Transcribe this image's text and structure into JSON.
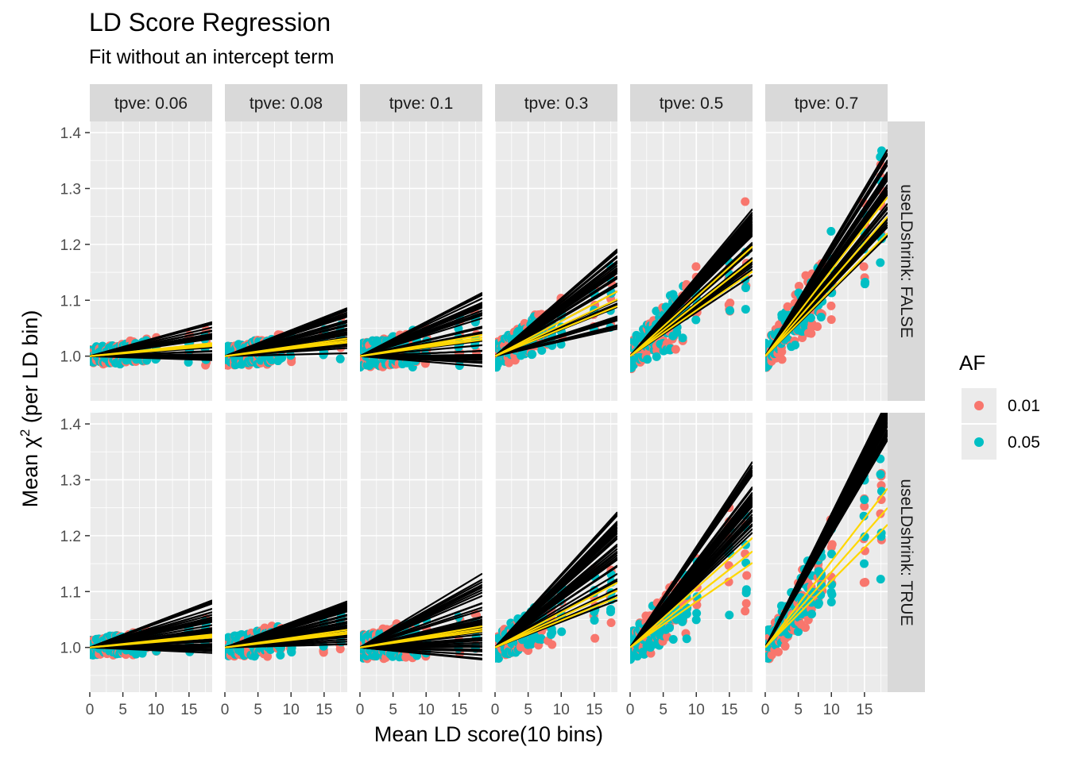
{
  "title": "LD Score Regression",
  "subtitle": "Fit without an intercept term",
  "xlabel": "Mean LD score(10 bins)",
  "ylabel_prefix": "Mean χ",
  "ylabel_sup": "2",
  "ylabel_suffix": " (per LD bin)",
  "legend": {
    "title": "AF",
    "items": [
      {
        "label": "0.01",
        "color": "#F8766D"
      },
      {
        "label": "0.05",
        "color": "#00BFC4"
      }
    ]
  },
  "colors": {
    "panel_bg": "#EBEBEB",
    "strip_bg": "#D9D9D9",
    "regression_line": "#000000",
    "mean_fit_line": "#FFD700",
    "af_001": "#F8766D",
    "af_005": "#00BFC4"
  },
  "chart_data": {
    "type": "scatter",
    "facet_cols_label": "tpve",
    "facet_cols": [
      "tpve: 0.06",
      "tpve: 0.08",
      "tpve: 0.1",
      "tpve: 0.3",
      "tpve: 0.5",
      "tpve: 0.7"
    ],
    "facet_rows": [
      "useLDshrink: FALSE",
      "useLDshrink: TRUE"
    ],
    "xlim": [
      0,
      18.5
    ],
    "ylim": [
      0.92,
      1.42
    ],
    "x_ticks": [
      0,
      5,
      10,
      15
    ],
    "y_ticks": [
      1.0,
      1.1,
      1.2,
      1.3,
      1.4
    ],
    "x_bins": [
      0.1,
      0.5,
      1,
      1.5,
      2,
      2.5,
      3,
      3.5,
      4,
      4.5,
      5,
      5.5,
      6,
      6.5,
      7,
      8,
      8.5,
      10,
      15,
      17.5
    ],
    "grid": true,
    "legend_position": "right",
    "legend_variable": "AF",
    "series_levels": [
      "0.01",
      "0.05"
    ],
    "panels": [
      {
        "row": "useLDshrink: FALSE",
        "col": "tpve: 0.06",
        "slope_mean": 0.0011,
        "slope_range": [
          -0.0005,
          0.0035
        ],
        "point_spread": 0.03
      },
      {
        "row": "useLDshrink: FALSE",
        "col": "tpve: 0.08",
        "slope_mean": 0.0015,
        "slope_range": [
          0.0002,
          0.0047
        ],
        "point_spread": 0.035
      },
      {
        "row": "useLDshrink: FALSE",
        "col": "tpve: 0.1",
        "slope_mean": 0.0018,
        "slope_range": [
          -0.0012,
          0.0062
        ],
        "point_spread": 0.045
      },
      {
        "row": "useLDshrink: FALSE",
        "col": "tpve: 0.3",
        "slope_mean": 0.0055,
        "slope_range": [
          0.0022,
          0.0107
        ],
        "point_spread": 0.045
      },
      {
        "row": "useLDshrink: FALSE",
        "col": "tpve: 0.5",
        "slope_mean": 0.0093,
        "slope_range": [
          0.0078,
          0.0145
        ],
        "point_spread": 0.05
      },
      {
        "row": "useLDshrink: FALSE",
        "col": "tpve: 0.7",
        "slope_mean": 0.0135,
        "slope_range": [
          0.0115,
          0.02
        ],
        "point_spread": 0.05
      },
      {
        "row": "useLDshrink: TRUE",
        "col": "tpve: 0.06",
        "slope_mean": 0.0011,
        "slope_range": [
          -0.0006,
          0.0046
        ],
        "point_spread": 0.03
      },
      {
        "row": "useLDshrink: TRUE",
        "col": "tpve: 0.08",
        "slope_mean": 0.0015,
        "slope_range": [
          0.0002,
          0.0046
        ],
        "point_spread": 0.035
      },
      {
        "row": "useLDshrink: TRUE",
        "col": "tpve: 0.1",
        "slope_mean": 0.0018,
        "slope_range": [
          -0.0015,
          0.0073
        ],
        "point_spread": 0.045
      },
      {
        "row": "useLDshrink: TRUE",
        "col": "tpve: 0.3",
        "slope_mean": 0.0055,
        "slope_range": [
          0.0042,
          0.0132
        ],
        "point_spread": 0.045
      },
      {
        "row": "useLDshrink: TRUE",
        "col": "tpve: 0.5",
        "slope_mean": 0.0093,
        "slope_range": [
          0.011,
          0.018
        ],
        "point_spread": 0.05
      },
      {
        "row": "useLDshrink: TRUE",
        "col": "tpve: 0.7",
        "slope_mean": 0.0135,
        "slope_range": [
          0.02,
          0.024
        ],
        "point_spread": 0.05
      }
    ]
  }
}
